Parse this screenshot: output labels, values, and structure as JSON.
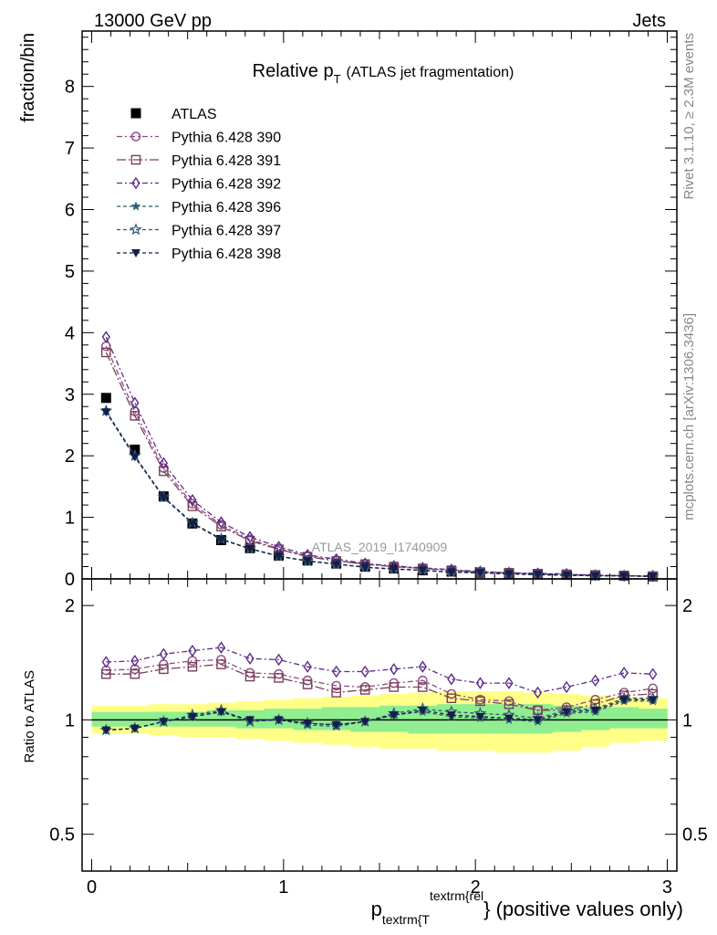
{
  "header": {
    "energy_label": "13000 GeV pp",
    "process_label": "Jets",
    "title_main": "Relative p",
    "title_sub": "T",
    "title_rest": "(ATLAS jet fragmentation)"
  },
  "side": {
    "rivet_label": "Rivet 3.1.10, ≥ 2.3M events",
    "mcplots_label": "mcplots.cern.ch [arXiv:1306.3436]"
  },
  "analysis_label": "ATLAS_2019_I1740909",
  "colors": {
    "data": "#000000",
    "band_outer": "#ffff88",
    "band_inner": "#90ee90",
    "py390": "#8a4a7f",
    "py391": "#7a3f5c",
    "py392": "#5b2c8a",
    "py396": "#2f6170",
    "py397": "#2f5a78",
    "py398": "#141e48"
  },
  "chart_data": [
    {
      "type": "scatter",
      "panel": "main",
      "title": "Relative p_T (ATLAS jet fragmentation)",
      "ylabel": "fraction/bin",
      "ylim": [
        0,
        8.9
      ],
      "xlim": [
        -0.05,
        3.05
      ],
      "yticks": [
        0,
        1,
        2,
        3,
        4,
        5,
        6,
        7,
        8
      ],
      "ytick_labels": [
        "0",
        "1",
        "2",
        "3",
        "4",
        "5",
        "6",
        "7",
        "8"
      ],
      "x": [
        0.075,
        0.225,
        0.375,
        0.525,
        0.675,
        0.825,
        0.975,
        1.125,
        1.275,
        1.425,
        1.575,
        1.725,
        1.875,
        2.025,
        2.175,
        2.325,
        2.475,
        2.625,
        2.775,
        2.925
      ],
      "series": [
        {
          "name": "ATLAS",
          "key": "data",
          "marker": "square_filled",
          "values": [
            2.94,
            2.1,
            1.34,
            0.9,
            0.63,
            0.5,
            0.38,
            0.3,
            0.25,
            0.2,
            0.17,
            0.14,
            0.12,
            0.1,
            0.09,
            0.08,
            0.07,
            0.06,
            0.05,
            0.04
          ]
        },
        {
          "name": "Pythia 6.428 390",
          "key": "py390",
          "marker": "circle_open",
          "dash": "6,3,2,3",
          "values": [
            3.78,
            2.72,
            1.8,
            1.22,
            0.88,
            0.64,
            0.49,
            0.37,
            0.3,
            0.24,
            0.2,
            0.17,
            0.14,
            0.11,
            0.1,
            0.08,
            0.07,
            0.06,
            0.05,
            0.04
          ]
        },
        {
          "name": "Pythia 6.428 391",
          "key": "py391",
          "marker": "square_open",
          "dash": "10,3,2,3",
          "values": [
            3.68,
            2.65,
            1.75,
            1.18,
            0.85,
            0.62,
            0.48,
            0.36,
            0.29,
            0.24,
            0.2,
            0.17,
            0.14,
            0.11,
            0.1,
            0.08,
            0.07,
            0.06,
            0.05,
            0.04
          ]
        },
        {
          "name": "Pythia 6.428 392",
          "key": "py392",
          "marker": "diamond_open",
          "dash": "6,3,2,3",
          "values": [
            3.93,
            2.86,
            1.88,
            1.28,
            0.92,
            0.68,
            0.52,
            0.39,
            0.32,
            0.25,
            0.21,
            0.18,
            0.15,
            0.12,
            0.1,
            0.09,
            0.08,
            0.06,
            0.05,
            0.05
          ]
        },
        {
          "name": "Pythia 6.428 396",
          "key": "py396",
          "marker": "star_filled",
          "dash": "4,3",
          "values": [
            2.72,
            1.99,
            1.33,
            0.91,
            0.65,
            0.49,
            0.37,
            0.29,
            0.24,
            0.19,
            0.16,
            0.14,
            0.11,
            0.1,
            0.08,
            0.07,
            0.06,
            0.05,
            0.05,
            0.04
          ]
        },
        {
          "name": "Pythia 6.428 397",
          "key": "py397",
          "marker": "star_open",
          "dash": "4,3",
          "values": [
            2.73,
            2.0,
            1.33,
            0.91,
            0.65,
            0.49,
            0.37,
            0.29,
            0.24,
            0.19,
            0.16,
            0.14,
            0.11,
            0.1,
            0.08,
            0.07,
            0.06,
            0.05,
            0.05,
            0.04
          ]
        },
        {
          "name": "Pythia 6.428 398",
          "key": "py398",
          "marker": "triangle_down_filled",
          "dash": "4,3",
          "values": [
            2.71,
            1.98,
            1.32,
            0.9,
            0.64,
            0.49,
            0.37,
            0.29,
            0.24,
            0.19,
            0.16,
            0.14,
            0.11,
            0.1,
            0.08,
            0.07,
            0.06,
            0.05,
            0.05,
            0.04
          ]
        }
      ]
    },
    {
      "type": "scatter",
      "panel": "ratio",
      "ylabel": "Ratio to ATLAS",
      "xlabel_main": "p",
      "xlabel_sub": "textrm{T",
      "xlabel_sup": "textrm{rel",
      "xlabel_rest": "} (positive values only)",
      "ylim": [
        0.4,
        2.35
      ],
      "log_y": true,
      "xlim": [
        -0.05,
        3.05
      ],
      "yticks": [
        0.5,
        1,
        2
      ],
      "ytick_labels": [
        "0.5",
        "1",
        "2"
      ],
      "xticks": [
        0,
        1,
        2,
        3
      ],
      "xtick_labels": [
        "0",
        "1",
        "2",
        "3"
      ],
      "bin_edges": [
        0.0,
        0.15,
        0.3,
        0.45,
        0.6,
        0.75,
        0.9,
        1.05,
        1.2,
        1.35,
        1.5,
        1.65,
        1.8,
        1.95,
        2.1,
        2.25,
        2.4,
        2.55,
        2.7,
        2.85,
        3.0
      ],
      "band_outer_low": [
        0.92,
        0.92,
        0.91,
        0.9,
        0.9,
        0.89,
        0.88,
        0.87,
        0.86,
        0.85,
        0.84,
        0.84,
        0.83,
        0.83,
        0.82,
        0.82,
        0.83,
        0.85,
        0.87,
        0.88
      ],
      "band_outer_high": [
        1.09,
        1.09,
        1.1,
        1.1,
        1.11,
        1.12,
        1.13,
        1.14,
        1.15,
        1.16,
        1.17,
        1.18,
        1.19,
        1.19,
        1.19,
        1.18,
        1.17,
        1.16,
        1.15,
        1.14
      ],
      "band_inner_low": [
        0.96,
        0.96,
        0.96,
        0.96,
        0.96,
        0.95,
        0.95,
        0.94,
        0.94,
        0.93,
        0.93,
        0.92,
        0.92,
        0.92,
        0.92,
        0.92,
        0.93,
        0.94,
        0.95,
        0.95
      ],
      "band_inner_high": [
        1.05,
        1.05,
        1.05,
        1.05,
        1.06,
        1.06,
        1.07,
        1.07,
        1.08,
        1.08,
        1.09,
        1.09,
        1.1,
        1.1,
        1.1,
        1.1,
        1.09,
        1.08,
        1.08,
        1.07
      ],
      "x": [
        0.075,
        0.225,
        0.375,
        0.525,
        0.675,
        0.825,
        0.975,
        1.125,
        1.275,
        1.425,
        1.575,
        1.725,
        1.875,
        2.025,
        2.175,
        2.325,
        2.475,
        2.625,
        2.775,
        2.925
      ],
      "series": [
        {
          "name": "Pythia 6.428 390",
          "key": "py390",
          "marker": "circle_open",
          "dash": "6,3,2,3",
          "values": [
            1.35,
            1.36,
            1.4,
            1.43,
            1.44,
            1.33,
            1.32,
            1.27,
            1.23,
            1.22,
            1.25,
            1.27,
            1.17,
            1.13,
            1.12,
            1.06,
            1.08,
            1.13,
            1.18,
            1.21
          ]
        },
        {
          "name": "Pythia 6.428 391",
          "key": "py391",
          "marker": "square_open",
          "dash": "10,3,2,3",
          "values": [
            1.32,
            1.32,
            1.36,
            1.38,
            1.4,
            1.3,
            1.29,
            1.24,
            1.18,
            1.2,
            1.22,
            1.22,
            1.14,
            1.12,
            1.1,
            1.06,
            1.06,
            1.1,
            1.16,
            1.17
          ]
        },
        {
          "name": "Pythia 6.428 392",
          "key": "py392",
          "marker": "diamond_open",
          "dash": "6,3,2,3",
          "values": [
            1.42,
            1.43,
            1.49,
            1.52,
            1.55,
            1.45,
            1.44,
            1.38,
            1.34,
            1.34,
            1.36,
            1.38,
            1.28,
            1.25,
            1.25,
            1.18,
            1.22,
            1.27,
            1.33,
            1.32
          ]
        },
        {
          "name": "Pythia 6.428 396",
          "key": "py396",
          "marker": "star_filled",
          "dash": "4,3",
          "values": [
            0.94,
            0.95,
            0.99,
            1.02,
            1.05,
            0.99,
            1.0,
            0.97,
            0.96,
            0.99,
            1.03,
            1.05,
            1.02,
            1.01,
            1.0,
            0.99,
            1.04,
            1.05,
            1.12,
            1.12
          ]
        },
        {
          "name": "Pythia 6.428 397",
          "key": "py397",
          "marker": "star_open",
          "dash": "4,3",
          "values": [
            0.94,
            0.95,
            0.99,
            1.03,
            1.06,
            0.99,
            1.0,
            0.98,
            0.97,
            0.99,
            1.04,
            1.07,
            1.05,
            1.04,
            1.03,
            1.01,
            1.06,
            1.07,
            1.14,
            1.14
          ]
        },
        {
          "name": "Pythia 6.428 398",
          "key": "py398",
          "marker": "triangle_down_filled",
          "dash": "4,3",
          "values": [
            0.94,
            0.95,
            0.99,
            1.02,
            1.05,
            1.0,
            1.0,
            0.98,
            0.97,
            0.99,
            1.03,
            1.06,
            1.03,
            1.02,
            1.01,
            1.0,
            1.05,
            1.06,
            1.13,
            1.13
          ]
        }
      ]
    }
  ]
}
